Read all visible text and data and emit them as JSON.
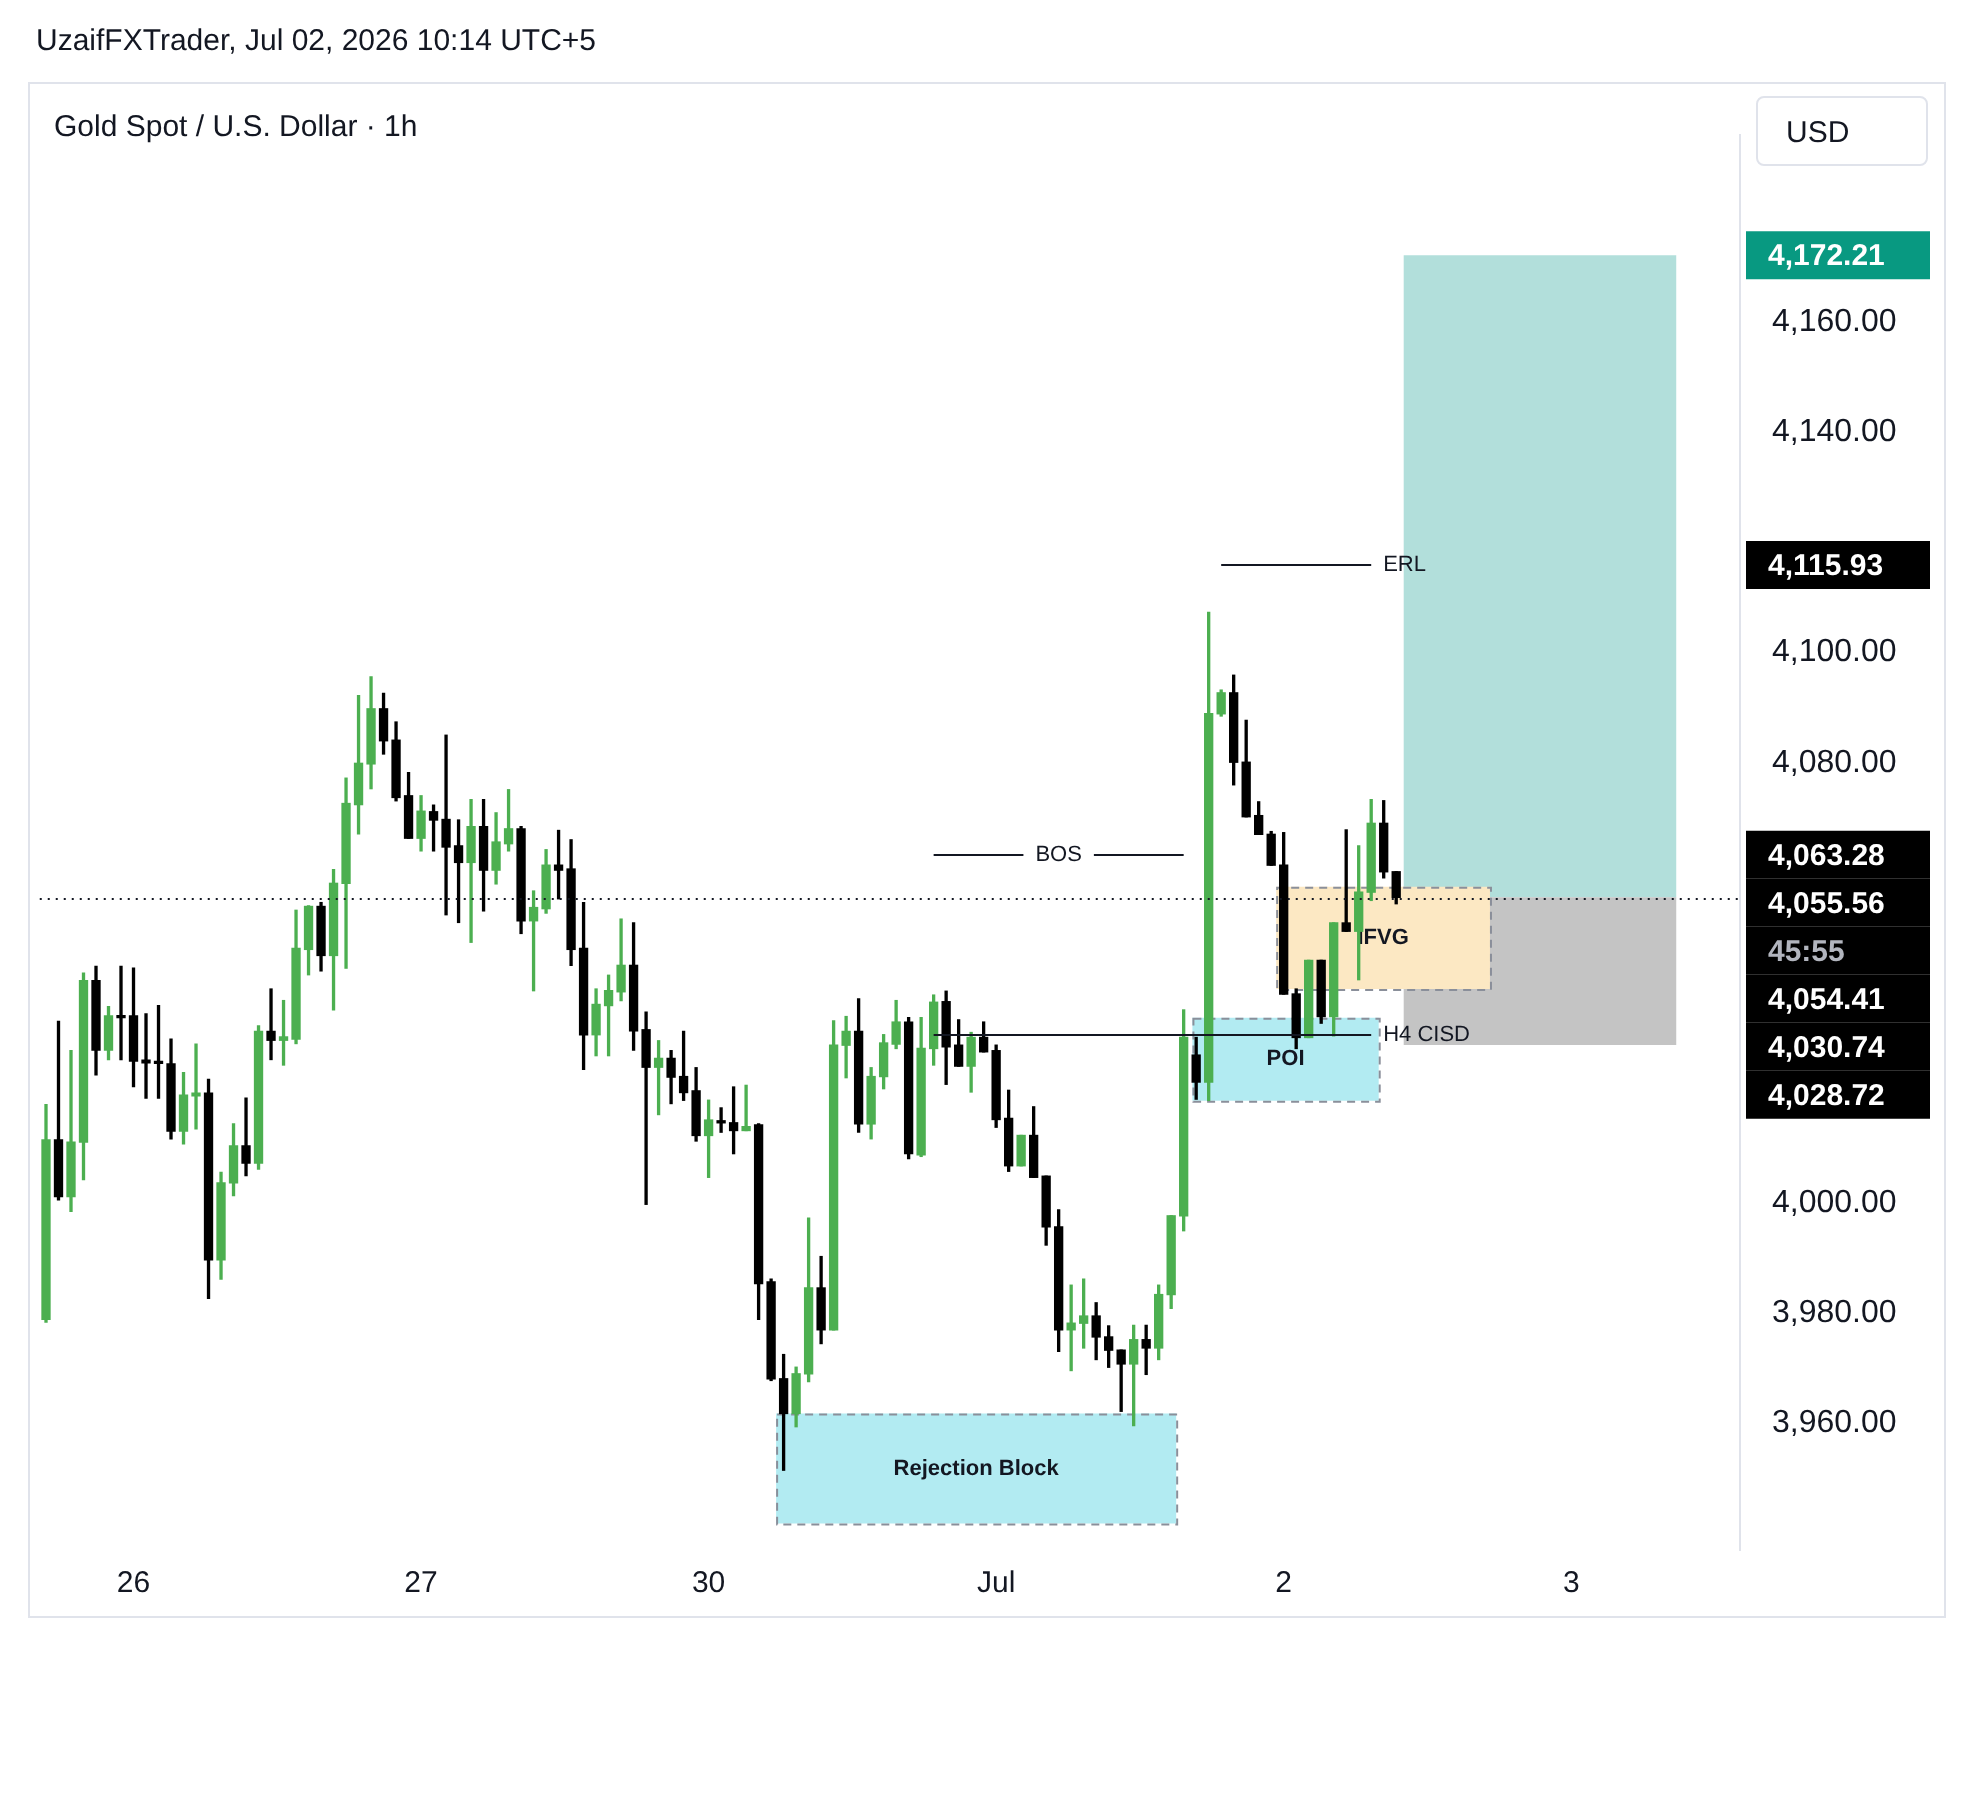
{
  "chart_data": {
    "type": "candlestick",
    "title": "Gold Spot / U.S. Dollar · 1h",
    "categories": [
      null,
      null,
      null,
      null,
      null,
      null,
      null,
      "26",
      null,
      null,
      null,
      null,
      null,
      null,
      null,
      null,
      null,
      null,
      null,
      null,
      null,
      null,
      null,
      null,
      null,
      null,
      null,
      null,
      null,
      null,
      "27",
      null,
      null,
      null,
      null,
      null,
      null,
      null,
      null,
      null,
      null,
      null,
      null,
      null,
      null,
      null,
      null,
      null,
      null,
      null,
      null,
      null,
      null,
      "30",
      null,
      null,
      null,
      null,
      null,
      null,
      null,
      null,
      null,
      null,
      null,
      null,
      null,
      null,
      null,
      null,
      null,
      null,
      null,
      null,
      null,
      null,
      "Jul",
      null,
      null,
      null,
      null,
      null,
      null,
      null,
      null,
      null,
      null,
      null,
      null,
      null,
      null,
      null,
      null,
      null,
      null,
      null,
      null,
      null,
      null,
      "2",
      null,
      null,
      null,
      null,
      null,
      null,
      null,
      null,
      null,
      null,
      null,
      null,
      null,
      null,
      null,
      null,
      null,
      null,
      null,
      null,
      null,
      null,
      "3",
      null,
      null,
      null,
      null,
      null,
      null,
      null,
      null,
      null,
      null,
      null,
      null,
      null
    ],
    "ohlc": [
      [
        3978.9,
        4017.9,
        3978.4,
        4011.5
      ],
      [
        4011.5,
        4033.0,
        4000.6,
        4001.2
      ],
      [
        4001.2,
        4027.7,
        3998.5,
        4011.1
      ],
      [
        4011.1,
        4041.8,
        4004.3,
        4040.4
      ],
      [
        4040.4,
        4043.0,
        4023.3,
        4027.8
      ],
      [
        4027.8,
        4035.7,
        4026.1,
        4034.0
      ],
      [
        4033.9,
        4043.0,
        4026.1,
        4033.7
      ],
      [
        4034.0,
        4042.7,
        4021.2,
        4025.8
      ],
      [
        4026.0,
        4034.4,
        4019.1,
        4025.5
      ],
      [
        4025.6,
        4035.9,
        4019.1,
        4025.4
      ],
      [
        4025.3,
        4029.8,
        4011.7,
        4013.1
      ],
      [
        4013.1,
        4023.7,
        4010.8,
        4019.6
      ],
      [
        4019.5,
        4028.9,
        4013.5,
        4020.0
      ],
      [
        4020.0,
        4022.5,
        3982.7,
        3989.7
      ],
      [
        3989.7,
        4005.6,
        3986.2,
        4003.7
      ],
      [
        4003.7,
        4014.4,
        4001.4,
        4010.4
      ],
      [
        4010.4,
        4019.1,
        4005.0,
        4007.3
      ],
      [
        4007.3,
        4032.2,
        4006.2,
        4031.2
      ],
      [
        4031.2,
        4038.9,
        4026.1,
        4029.6
      ],
      [
        4029.6,
        4036.8,
        4025.1,
        4030.2
      ],
      [
        4029.8,
        4053.2,
        4029.0,
        4046.3
      ],
      [
        4046.1,
        4054.0,
        4041.5,
        4053.9
      ],
      [
        4053.9,
        4054.6,
        4042.2,
        4045.0
      ],
      [
        4045.0,
        4060.6,
        4035.1,
        4058.1
      ],
      [
        4058.1,
        4077.2,
        4042.7,
        4072.6
      ],
      [
        4072.4,
        4092.2,
        4067.1,
        4079.9
      ],
      [
        4079.8,
        4095.6,
        4075.3,
        4089.8
      ],
      [
        4089.8,
        4092.6,
        4081.6,
        4084.0
      ],
      [
        4084.1,
        4087.4,
        4073.1,
        4073.7
      ],
      [
        4074.0,
        4078.2,
        4066.3,
        4066.3
      ],
      [
        4066.3,
        4074.0,
        4064.0,
        4071.2
      ],
      [
        4071.1,
        4072.3,
        4064.0,
        4069.6
      ],
      [
        4069.7,
        4085.0,
        4052.4,
        4064.7
      ],
      [
        4064.9,
        4069.6,
        4051.0,
        4061.9
      ],
      [
        4061.9,
        4073.3,
        4047.4,
        4068.4
      ],
      [
        4068.4,
        4073.3,
        4053.1,
        4060.5
      ],
      [
        4060.5,
        4070.9,
        4058.0,
        4065.6
      ],
      [
        4065.3,
        4075.1,
        4064.0,
        4068.0
      ],
      [
        4068.0,
        4068.4,
        4049.0,
        4051.3
      ],
      [
        4051.3,
        4056.7,
        4038.6,
        4053.7
      ],
      [
        4053.5,
        4064.2,
        4052.7,
        4061.4
      ],
      [
        4061.4,
        4067.7,
        4055.3,
        4060.5
      ],
      [
        4060.7,
        4066.0,
        4043.2,
        4046.1
      ],
      [
        4046.3,
        4054.6,
        4024.3,
        4030.6
      ],
      [
        4030.6,
        4038.9,
        4026.8,
        4036.1
      ],
      [
        4035.9,
        4041.4,
        4026.8,
        4038.6
      ],
      [
        4038.4,
        4051.6,
        4036.8,
        4043.2
      ],
      [
        4043.2,
        4050.9,
        4027.8,
        4031.3
      ],
      [
        4031.5,
        4034.7,
        3999.8,
        4024.7
      ],
      [
        4024.7,
        4029.5,
        4016.1,
        4026.3
      ],
      [
        4026.3,
        4027.7,
        4018.1,
        4022.9
      ],
      [
        4023.0,
        4031.2,
        4018.7,
        4020.1
      ],
      [
        4020.4,
        4024.6,
        4011.3,
        4012.3
      ],
      [
        4012.3,
        4018.7,
        4004.7,
        4015.1
      ],
      [
        4014.9,
        4017.3,
        4012.9,
        4014.6
      ],
      [
        4014.6,
        4021.1,
        4009.0,
        4013.2
      ],
      [
        4013.2,
        4021.4,
        4013.2,
        4013.9
      ],
      [
        4014.2,
        4014.4,
        3978.9,
        3985.4
      ],
      [
        3985.7,
        3986.2,
        3967.8,
        3968.1
      ],
      [
        3968.1,
        3972.5,
        3951.5,
        3961.8
      ],
      [
        3961.8,
        3970.2,
        3959.4,
        3969.0
      ],
      [
        3969.0,
        3997.3,
        3967.6,
        3984.6
      ],
      [
        3984.6,
        3990.3,
        3974.5,
        3977.0
      ],
      [
        3977.0,
        4033.1,
        3977.0,
        4028.7
      ],
      [
        4028.7,
        4033.9,
        4022.8,
        4031.2
      ],
      [
        4031.2,
        4037.1,
        4012.9,
        4014.4
      ],
      [
        4014.4,
        4024.6,
        4011.7,
        4023.0
      ],
      [
        4023.0,
        4030.6,
        4020.8,
        4029.1
      ],
      [
        4028.9,
        4036.8,
        4028.1,
        4032.9
      ],
      [
        4032.9,
        4033.7,
        4008.1,
        4009.0
      ],
      [
        4008.8,
        4033.7,
        4008.5,
        4028.1
      ],
      [
        4028.1,
        4037.8,
        4025.1,
        4036.5
      ],
      [
        4036.6,
        4038.5,
        4021.6,
        4028.4
      ],
      [
        4028.7,
        4033.3,
        4024.9,
        4024.9
      ],
      [
        4024.9,
        4031.0,
        4020.2,
        4030.1
      ],
      [
        4030.1,
        4032.9,
        4027.5,
        4027.5
      ],
      [
        4027.7,
        4028.7,
        4013.8,
        4015.2
      ],
      [
        4015.4,
        4020.5,
        4005.8,
        4006.8
      ],
      [
        4006.8,
        4012.3,
        4006.8,
        4012.3
      ],
      [
        4012.3,
        4017.5,
        4004.7,
        4004.7
      ],
      [
        4004.9,
        4004.9,
        3992.4,
        3995.7
      ],
      [
        3995.7,
        3998.8,
        3973.1,
        3977.0
      ],
      [
        3977.0,
        3985.1,
        3969.6,
        3978.2
      ],
      [
        3978.2,
        3986.2,
        3973.7,
        3979.5
      ],
      [
        3979.5,
        3981.9,
        3971.6,
        3975.7
      ],
      [
        3975.7,
        3977.7,
        3970.2,
        3973.3
      ],
      [
        3973.3,
        3973.3,
        3962.2,
        3970.8
      ],
      [
        3970.8,
        3977.8,
        3959.6,
        3975.2
      ],
      [
        3975.2,
        3977.8,
        3968.9,
        3973.7
      ],
      [
        3973.7,
        3985.1,
        3971.6,
        3983.4
      ],
      [
        3983.4,
        3997.7,
        3980.9,
        3997.7
      ],
      [
        3997.7,
        4035.1,
        3995.0,
        4030.1
      ],
      [
        4026.9,
        4030.1,
        4018.9,
        4022.0
      ],
      [
        4022.0,
        4107.3,
        4018.7,
        4088.9
      ],
      [
        4088.9,
        4093.2,
        4088.5,
        4092.7
      ],
      [
        4092.7,
        4095.9,
        4076.0,
        4080.1
      ],
      [
        4080.1,
        4087.7,
        4070.2,
        4070.2
      ],
      [
        4070.4,
        4072.9,
        4067.0,
        4067.0
      ],
      [
        4067.0,
        4067.5,
        4061.4,
        4061.4
      ],
      [
        4061.4,
        4067.3,
        4038.0,
        4038.0
      ],
      [
        4038.0,
        4038.9,
        4028.1,
        4030.1
      ],
      [
        4030.1,
        4044.1,
        4030.1,
        4044.1
      ],
      [
        4044.1,
        4044.1,
        4032.7,
        4033.9
      ],
      [
        4033.9,
        4050.9,
        4030.4,
        4050.9
      ],
      [
        4050.9,
        4067.8,
        4049.4,
        4049.4
      ],
      [
        4049.4,
        4064.9,
        4040.6,
        4056.5
      ],
      [
        4056.5,
        4073.3,
        4055.0,
        4069.0
      ],
      [
        4069.0,
        4073.1,
        4059.1,
        4060.2
      ],
      [
        4060.2,
        4060.2,
        4054.4,
        4055.56
      ],
      null,
      null,
      null,
      null,
      null,
      null,
      null,
      null,
      null,
      null,
      null,
      null,
      null,
      null,
      null,
      null,
      null,
      null,
      null,
      null,
      null,
      null,
      null,
      null,
      null,
      null,
      null
    ],
    "colors": [
      "#4caf50",
      "#000000",
      "#4caf50",
      "#4caf50",
      "#000000",
      "#4caf50",
      "#000000",
      "#000000",
      "#000000",
      "#000000",
      "#000000",
      "#4caf50",
      "#4caf50",
      "#000000",
      "#4caf50",
      "#4caf50",
      "#000000",
      "#4caf50",
      "#000000",
      "#4caf50",
      "#4caf50",
      "#4caf50",
      "#000000",
      "#4caf50",
      "#4caf50",
      "#4caf50",
      "#4caf50",
      "#000000",
      "#000000",
      "#000000",
      "#4caf50",
      "#000000",
      "#000000",
      "#000000",
      "#4caf50",
      "#000000",
      "#4caf50",
      "#4caf50",
      "#000000",
      "#4caf50",
      "#4caf50",
      "#000000",
      "#000000",
      "#000000",
      "#4caf50",
      "#4caf50",
      "#4caf50",
      "#000000",
      "#000000",
      "#4caf50",
      "#000000",
      "#000000",
      "#000000",
      "#4caf50",
      "#000000",
      "#000000",
      "#4caf50",
      "#000000",
      "#000000",
      "#000000",
      "#4caf50",
      "#4caf50",
      "#000000",
      "#4caf50",
      "#4caf50",
      "#000000",
      "#4caf50",
      "#4caf50",
      "#4caf50",
      "#000000",
      "#4caf50",
      "#4caf50",
      "#000000",
      "#000000",
      "#4caf50",
      "#000000",
      "#000000",
      "#000000",
      "#4caf50",
      "#000000",
      "#000000",
      "#000000",
      "#4caf50",
      "#4caf50",
      "#000000",
      "#000000",
      "#000000",
      "#4caf50",
      "#000000",
      "#4caf50",
      "#4caf50",
      "#4caf50",
      "#000000",
      "#4caf50",
      "#4caf50",
      "#000000",
      "#000000",
      "#000000",
      "#000000",
      "#000000",
      "#000000",
      "#4caf50",
      "#000000",
      "#4caf50",
      "#000000",
      "#4caf50",
      "#4caf50",
      "#000000",
      "#000000",
      null,
      null,
      null,
      null,
      null,
      null,
      null,
      null,
      null,
      null,
      null,
      null,
      null,
      null,
      null,
      null,
      null,
      null,
      null,
      null,
      null,
      null,
      null,
      null,
      null,
      null,
      null
    ],
    "ylim": [
      3937,
      4194
    ],
    "yticks": [
      {
        "value": 3960,
        "label": "3,960.00"
      },
      {
        "value": 3980,
        "label": "3,980.00"
      },
      {
        "value": 4000,
        "label": "4,000.00"
      },
      {
        "value": 4080,
        "label": "4,080.00"
      },
      {
        "value": 4100,
        "label": "4,100.00"
      },
      {
        "value": 4140,
        "label": "4,140.00"
      },
      {
        "value": 4160,
        "label": "4,160.00"
      }
    ],
    "bands": [
      {
        "axis": "y",
        "from": 4055.56,
        "to": 4172.21,
        "color": "#b2dfdb"
      },
      {
        "axis": "y",
        "from": 4028.72,
        "to": 4055.56,
        "color": "#c4c4c4"
      },
      {
        "axis": "y",
        "from": 4038.9,
        "to": 4057.5,
        "label": "IFVG",
        "color": "#fce8c3"
      },
      {
        "axis": "y",
        "from": 4018.6,
        "to": 4033.7,
        "label": "POI",
        "color": "#b2ebf2"
      },
      {
        "axis": "y",
        "from": 3941.8,
        "to": 3961.8,
        "label": "Rejection Block",
        "color": "#b2ebf2"
      }
    ],
    "ref_lines": [
      {
        "axis": "y",
        "value": 4055.56,
        "line_style": "dotted",
        "color": "#131722"
      },
      {
        "axis": "y",
        "value": 4115.93,
        "label": "ERL",
        "color": "#131722"
      },
      {
        "axis": "y",
        "value": 4063.28,
        "label": "BOS",
        "color": "#131722"
      },
      {
        "axis": "y",
        "value": 4030.74,
        "label": "H4 CISD",
        "color": "#131722"
      }
    ],
    "annotations": [
      "UzaifFXTrader, Jul 02, 2026 10:14 UTC+5",
      "USD",
      "4,172.21",
      "4,115.93",
      "4,063.28",
      "4,055.56",
      "45:55",
      "4,054.41",
      "4,030.74",
      "4,028.72"
    ]
  }
}
